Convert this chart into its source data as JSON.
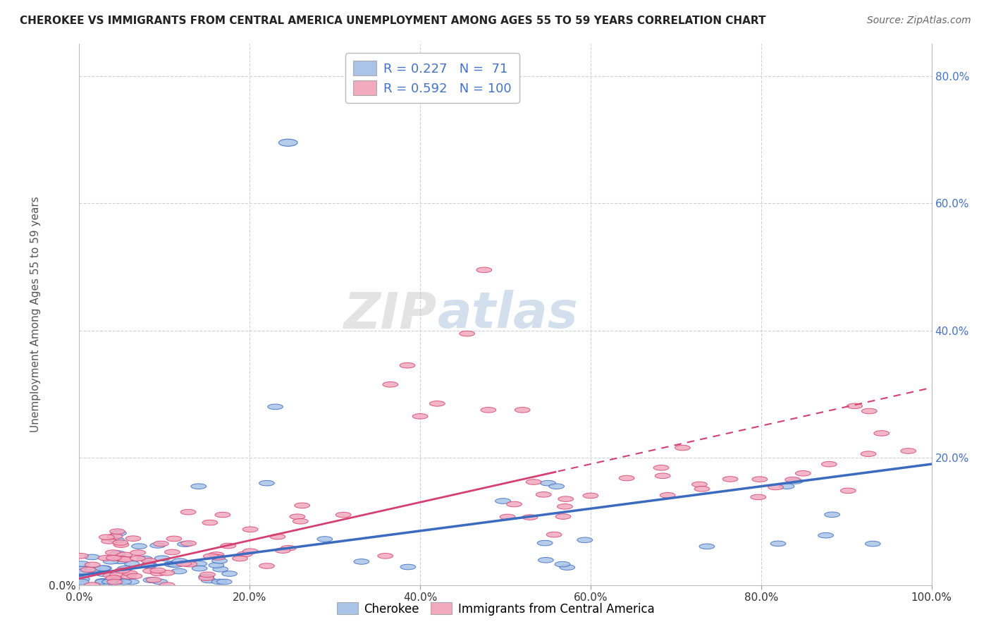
{
  "title": "CHEROKEE VS IMMIGRANTS FROM CENTRAL AMERICA UNEMPLOYMENT AMONG AGES 55 TO 59 YEARS CORRELATION CHART",
  "source": "Source: ZipAtlas.com",
  "ylabel": "Unemployment Among Ages 55 to 59 years",
  "xlabel": "",
  "xlim": [
    0.0,
    1.0
  ],
  "ylim": [
    0.0,
    0.85
  ],
  "xticks": [
    0.0,
    0.2,
    0.4,
    0.6,
    0.8,
    1.0
  ],
  "xticklabels": [
    "0.0%",
    "20.0%",
    "40.0%",
    "60.0%",
    "80.0%",
    "100.0%"
  ],
  "yticks": [
    0.0,
    0.2,
    0.4,
    0.6,
    0.8
  ],
  "yticklabels": [
    "0.0%",
    "20.0%",
    "40.0%",
    "60.0%",
    "80.0%"
  ],
  "right_yticks": [
    0.2,
    0.4,
    0.6,
    0.8
  ],
  "right_yticklabels": [
    "20.0%",
    "40.0%",
    "60.0%",
    "80.0%"
  ],
  "cherokee_R": "0.227",
  "cherokee_N": "71",
  "immigrants_R": "0.592",
  "immigrants_N": "100",
  "cherokee_color": "#aac4e8",
  "immigrants_color": "#f2aabf",
  "cherokee_line_color": "#3a6bbf",
  "immigrants_line_color": "#d44070",
  "grid_color": "#d0d0d0",
  "legend_label_1": "Cherokee",
  "legend_label_2": "Immigrants from Central America",
  "bg_color": "#ffffff",
  "title_color": "#222222",
  "source_color": "#666666",
  "tick_color": "#4472c4",
  "ylabel_color": "#555555"
}
